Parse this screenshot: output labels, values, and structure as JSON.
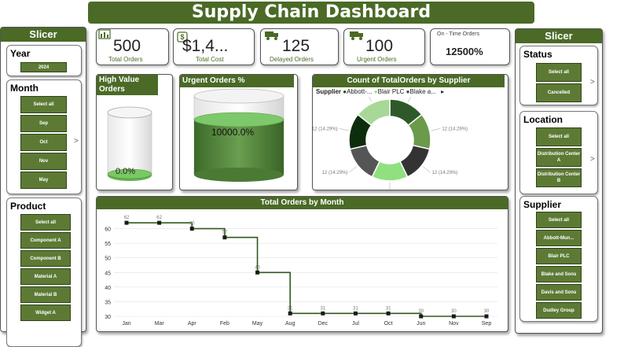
{
  "title": "Supply Chain Dashboard",
  "left_slicer": {
    "header": "Slicer",
    "year": {
      "title": "Year",
      "items": [
        "2024"
      ]
    },
    "month": {
      "title": "Month",
      "items": [
        "Select all",
        "Sep",
        "Oct",
        "Nov",
        "May"
      ]
    },
    "product": {
      "title": "Product",
      "items": [
        "Select all",
        "Component A",
        "Component B",
        "Material A",
        "Material B",
        "Widget A"
      ]
    }
  },
  "right_slicer": {
    "header": "Slicer",
    "status": {
      "title": "Status",
      "items": [
        "Select all",
        "Cancelled"
      ]
    },
    "location": {
      "title": "Location",
      "items": [
        "Select all",
        "Distribution Center A",
        "Distribution Center B"
      ]
    },
    "supplier": {
      "title": "Supplier",
      "items": [
        "Select all",
        "Abbott-Mun...",
        "Blair PLC",
        "Blake and Sons",
        "Davis and Sons",
        "Dudley Group"
      ]
    }
  },
  "kpis": [
    {
      "value": "500",
      "label": "Total Orders",
      "icon": "bar-chart-icon"
    },
    {
      "value": "$1,4...",
      "label": "Total Cost",
      "icon": "dollar-icon"
    },
    {
      "value": "125",
      "label": "Delayed Orders",
      "icon": "truck-icon"
    },
    {
      "value": "100",
      "label": "Urgent Orders",
      "icon": "truck-icon"
    }
  ],
  "on_time": {
    "title": "On - Time Orders",
    "value": "12500%"
  },
  "high_value": {
    "title": "High Value Orders",
    "value": "0.0%"
  },
  "urgent_pct": {
    "title": "Urgent Orders %",
    "value": "10000.0%"
  },
  "donut": {
    "title": "Count of TotalOrders by Supplier",
    "legend_label": "Supplier",
    "legend_items": [
      "Abbott-...",
      "Blair PLC",
      "Blake a..."
    ],
    "nav": "▸",
    "slice_label": "12 (14.29%)",
    "slices": [
      {
        "value": 12,
        "color": "#2e5a2a"
      },
      {
        "value": 12,
        "color": "#6a9a4a"
      },
      {
        "value": 12,
        "color": "#333333"
      },
      {
        "value": 12,
        "color": "#90e080"
      },
      {
        "value": 12,
        "color": "#555555"
      },
      {
        "value": 12,
        "color": "#0d2e0d"
      },
      {
        "value": 12,
        "color": "#a8d898"
      }
    ]
  },
  "chart_data": {
    "type": "line",
    "title": "Total Orders by Month",
    "step": true,
    "categories": [
      "Jan",
      "Mar",
      "Apr",
      "Feb",
      "May",
      "Aug",
      "Dec",
      "Jul",
      "Oct",
      "Jun",
      "Nov",
      "Sep"
    ],
    "values": [
      62,
      62,
      60,
      57,
      45,
      31,
      31,
      31,
      31,
      30,
      30,
      30
    ],
    "ylim": [
      30,
      65
    ],
    "yticks": [
      30,
      35,
      40,
      45,
      50,
      55,
      60
    ],
    "color": "#2e5a1e"
  }
}
